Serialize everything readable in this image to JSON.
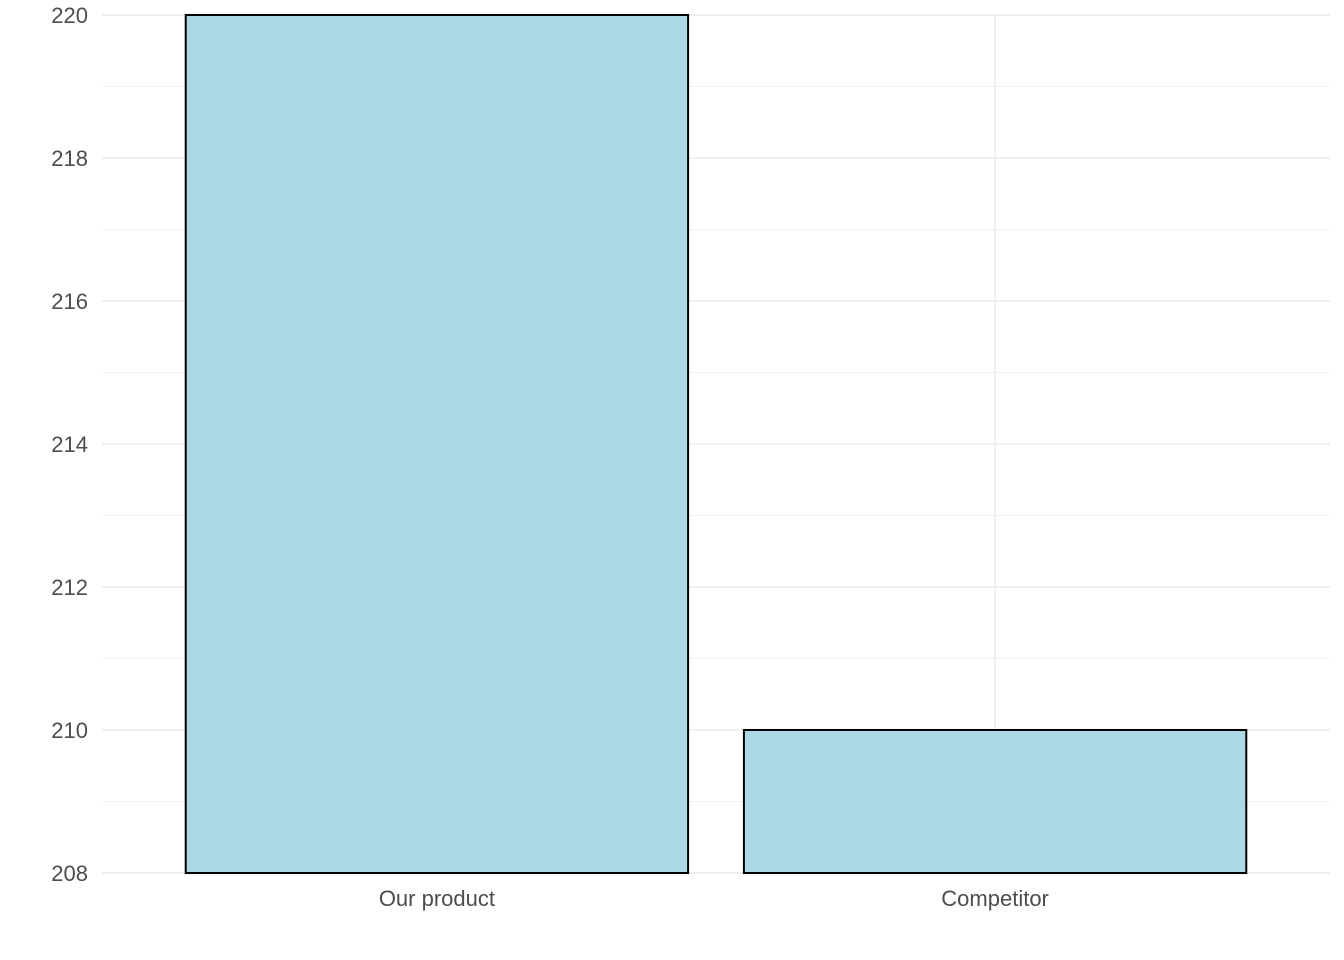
{
  "chart_data": {
    "type": "bar",
    "title": "",
    "xlabel": "",
    "ylabel": "",
    "categories": [
      "Our product",
      "Competitor"
    ],
    "values": [
      220,
      210
    ],
    "ylim": [
      208,
      220
    ],
    "y_ticks": [
      "208",
      "210",
      "212",
      "214",
      "216",
      "218",
      "220"
    ],
    "grid": true,
    "legend": "none",
    "colors": {
      "bar_fill": "#add8e6",
      "bar_stroke": "#000000",
      "grid_major": "#ebebeb",
      "grid_minor": "#f2f2f2",
      "tick_text": "#4d4d4d"
    }
  }
}
